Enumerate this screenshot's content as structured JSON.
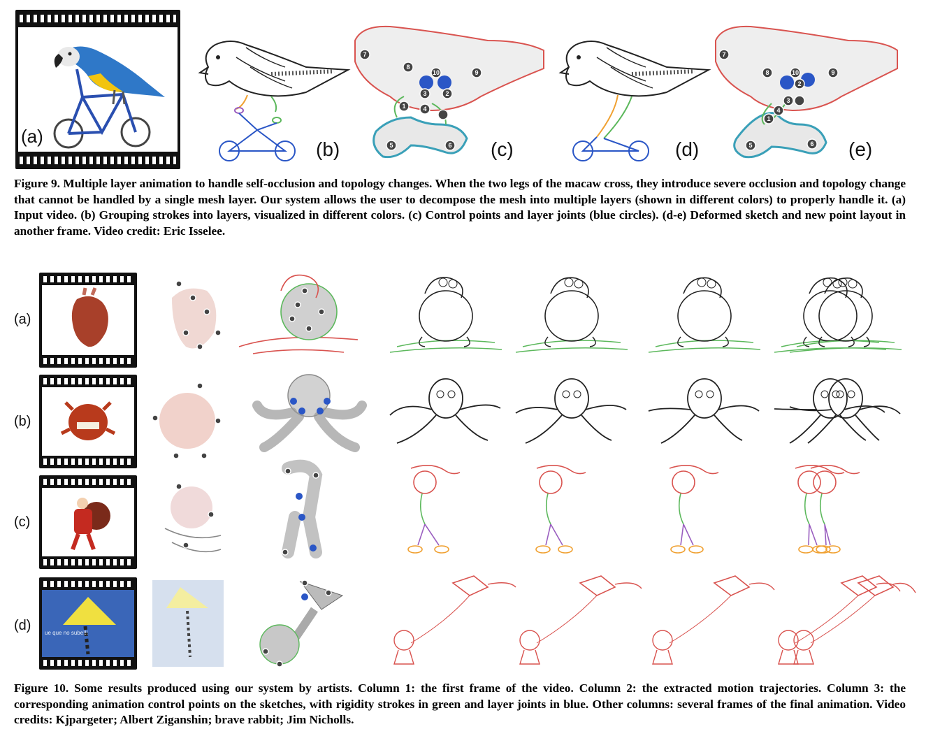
{
  "figure9": {
    "panel_labels": [
      "(a)",
      "(b)",
      "(c)",
      "(d)",
      "(e)"
    ],
    "control_point_numbers": [
      "1",
      "2",
      "3",
      "4",
      "5",
      "6",
      "7",
      "8",
      "9",
      "10"
    ],
    "caption": {
      "label": "Figure 9.",
      "text": "Multiple layer animation to handle self-occlusion and topology changes. When the two legs of the macaw cross, they introduce severe occlusion and topology change that cannot be handled by a single mesh layer. Our system allows the user to decompose the mesh into multiple layers (shown in different colors) to properly handle it. (a) Input video. (b) Grouping strokes into layers, visualized in different colors. (c) Control points and layer joints (blue circles). (d-e) Deformed sketch and new point layout in another frame. Video credit: Eric Isselee."
    }
  },
  "figure10": {
    "row_labels": [
      "(a)",
      "(b)",
      "(c)",
      "(d)"
    ],
    "kite_text": "ue que no sube!!!",
    "caption": {
      "label": "Figure 10.",
      "text": "Some results produced using our system by artists. Column 1: the first frame of the video. Column 2: the extracted motion trajectories. Column 3: the corresponding animation control points on the sketches, with rigidity strokes in green and layer joints in blue. Other columns: several frames of the final animation. Video credits: Kjpargeter; Albert Ziganshin; brave rabbit; Jim Nicholls."
    }
  },
  "colors": {
    "layer_red": "#d9534f",
    "layer_green": "#5cb85c",
    "layer_blue": "#2a56c6",
    "layer_orange": "#f0a030",
    "layer_purple": "#9a5fc0",
    "layer_cyan": "#3aa0b8",
    "film": "#111111"
  }
}
